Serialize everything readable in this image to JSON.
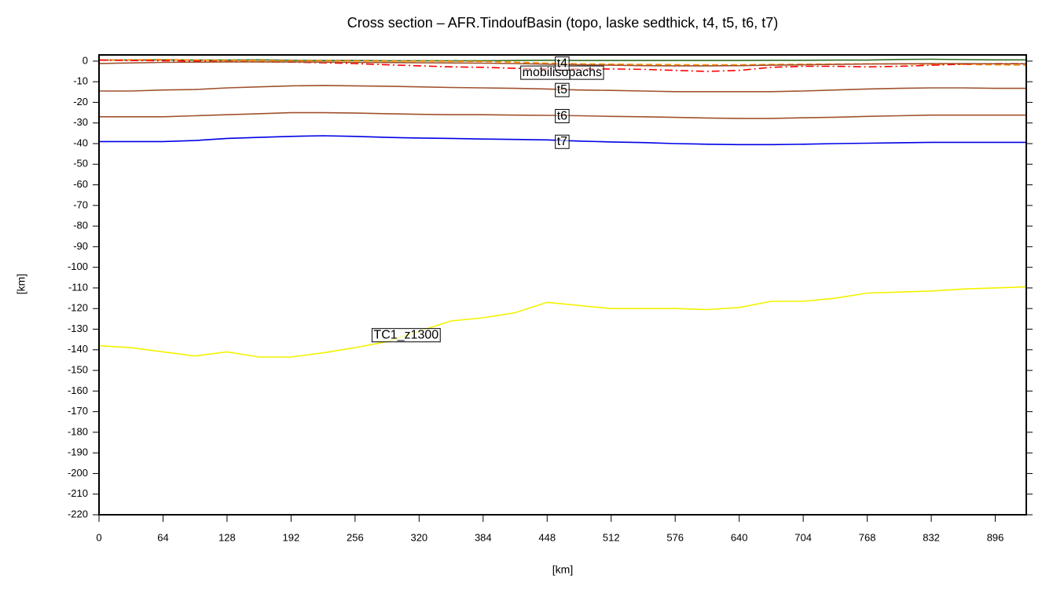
{
  "chart_data": {
    "type": "line",
    "title": "Cross section – AFR.TindoufBasin (topo, laske sedthick, t4, t5, t6, t7)",
    "x_label": "[km]",
    "y_label": "[km]",
    "x": [
      0,
      32,
      64,
      96,
      128,
      160,
      192,
      224,
      256,
      288,
      320,
      352,
      384,
      416,
      448,
      480,
      512,
      544,
      576,
      608,
      640,
      672,
      704,
      736,
      768,
      800,
      832,
      864,
      896,
      927
    ],
    "series": [
      {
        "color": "#2e6b1f",
        "dash": "solid",
        "values": [
          0.5,
          0.5,
          0.6,
          0.5,
          0.5,
          0.6,
          0.4,
          0.3,
          0.3,
          0.2,
          0.2,
          0.2,
          0.2,
          0.3,
          0.4,
          0.3,
          0.3,
          0.3,
          0.3,
          0.3,
          0.3,
          0.4,
          0.4,
          0.5,
          0.5,
          0.8,
          0.9,
          0.7,
          0.6,
          0.6
        ]
      },
      {
        "color": "#ff8c00",
        "dash": "dashed",
        "values": [
          0.5,
          0.6,
          0.8,
          0.5,
          0.3,
          0.3,
          0.2,
          0.2,
          0.1,
          0,
          0,
          -0.1,
          -0.2,
          -0.5,
          -1,
          -1.3,
          -1.5,
          -1.6,
          -1.7,
          -1.8,
          -1.8,
          -1.6,
          -1.5,
          -1.4,
          -1.3,
          -1.4,
          -1.5,
          -1.6,
          -1.8,
          -2
        ]
      },
      {
        "name": "mobilisopachs",
        "color": "#ff0000",
        "dash": "dashdot",
        "values": [
          0.5,
          0.3,
          0.2,
          0,
          -0.2,
          -0.3,
          -0.5,
          -0.8,
          -1.2,
          -1.8,
          -2.3,
          -2.8,
          -3,
          -3.5,
          -3.8,
          -3.8,
          -3.8,
          -4,
          -4.5,
          -5,
          -4.5,
          -3,
          -2.5,
          -2.5,
          -2.8,
          -2.5,
          -2,
          -1.5,
          -1.2,
          -1.2
        ]
      },
      {
        "name": "t4",
        "color": "#a0522d",
        "dash": "solid",
        "values": [
          -1.2,
          -0.9,
          -0.6,
          -0.5,
          -0.4,
          -0.4,
          -0.4,
          -0.5,
          -0.6,
          -0.7,
          -0.8,
          -0.9,
          -1,
          -1.2,
          -1.5,
          -1.8,
          -2,
          -2.2,
          -2.3,
          -2.3,
          -2.2,
          -2,
          -1.8,
          -1.6,
          -1.4,
          -1.3,
          -1.2,
          -1.2,
          -1.3,
          -1.3
        ]
      },
      {
        "name": "t5",
        "color": "#a0522d",
        "dash": "solid",
        "values": [
          -14.5,
          -14.5,
          -14,
          -13.8,
          -13,
          -12.5,
          -12,
          -11.8,
          -12,
          -12.2,
          -12.5,
          -12.8,
          -13,
          -13.2,
          -13.5,
          -14,
          -14.2,
          -14.5,
          -14.8,
          -14.8,
          -14.8,
          -14.8,
          -14.5,
          -14,
          -13.5,
          -13.2,
          -13,
          -13,
          -13.2,
          -13.2
        ]
      },
      {
        "name": "t6",
        "color": "#a0522d",
        "dash": "solid",
        "values": [
          -27,
          -27,
          -27,
          -26.5,
          -26,
          -25.5,
          -25,
          -25,
          -25.2,
          -25.5,
          -25.8,
          -26,
          -26,
          -26.2,
          -26.3,
          -26.5,
          -26.8,
          -27,
          -27.3,
          -27.6,
          -27.8,
          -27.8,
          -27.5,
          -27.2,
          -26.8,
          -26.5,
          -26.2,
          -26.2,
          -26.2,
          -26.2
        ]
      },
      {
        "name": "t7",
        "color": "#0000e6",
        "dash": "solid",
        "values": [
          -39,
          -39,
          -39,
          -38.5,
          -37.5,
          -37,
          -36.5,
          -36.2,
          -36.5,
          -37,
          -37.3,
          -37.5,
          -37.8,
          -38,
          -38.2,
          -38.8,
          -39.2,
          -39.5,
          -40,
          -40.3,
          -40.5,
          -40.5,
          -40.3,
          -40,
          -39.8,
          -39.6,
          -39.4,
          -39.4,
          -39.4,
          -39.4
        ]
      },
      {
        "name": "TC1_z1300",
        "color": "#f2f200",
        "dash": "solid",
        "values": [
          -138,
          -139,
          -141,
          -143,
          -141,
          -143.5,
          -143.5,
          -141.5,
          -139,
          -136,
          -131,
          -126,
          -124.5,
          -122,
          -117,
          -118.5,
          -120,
          -120,
          -120,
          -120.5,
          -119.5,
          -116.5,
          -116.5,
          -115,
          -112.5,
          -112,
          -111.5,
          -110.5,
          -110,
          -109.5
        ]
      }
    ],
    "xlim": [
      0,
      927
    ],
    "ylim": [
      -220,
      3
    ],
    "xticks": [
      0,
      64,
      128,
      192,
      256,
      320,
      384,
      448,
      512,
      576,
      640,
      704,
      768,
      832,
      896
    ],
    "yticks": [
      0,
      -10,
      -20,
      -30,
      -40,
      -50,
      -60,
      -70,
      -80,
      -90,
      -100,
      -110,
      -120,
      -130,
      -140,
      -150,
      -160,
      -170,
      -180,
      -190,
      -200,
      -210,
      -220
    ]
  }
}
